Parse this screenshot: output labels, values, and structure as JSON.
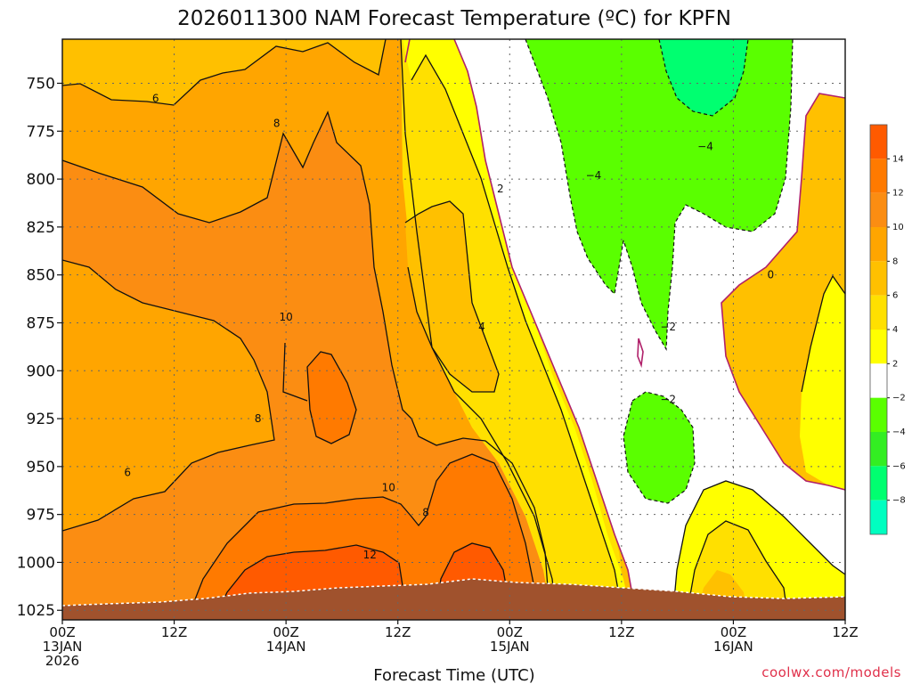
{
  "chart_data": {
    "type": "heatmap",
    "title": "2026011300 NAM Forecast Temperature (ºC) for KPFN",
    "xlabel": "Forecast Time (UTC)",
    "ylabel": "",
    "credit": "coolwx.com/models",
    "x_ticks": [
      {
        "hour": 0,
        "line1": "00Z",
        "line2": "13JAN",
        "line3": "2026"
      },
      {
        "hour": 12,
        "line1": "12Z",
        "line2": "",
        "line3": ""
      },
      {
        "hour": 24,
        "line1": "00Z",
        "line2": "14JAN",
        "line3": ""
      },
      {
        "hour": 36,
        "line1": "12Z",
        "line2": "",
        "line3": ""
      },
      {
        "hour": 48,
        "line1": "00Z",
        "line2": "15JAN",
        "line3": ""
      },
      {
        "hour": 60,
        "line1": "12Z",
        "line2": "",
        "line3": ""
      },
      {
        "hour": 72,
        "line1": "00Z",
        "line2": "16JAN",
        "line3": ""
      },
      {
        "hour": 84,
        "line1": "12Z",
        "line2": "",
        "line3": ""
      }
    ],
    "xlim": [
      0,
      84
    ],
    "y_ticks": [
      750,
      775,
      800,
      825,
      850,
      875,
      900,
      925,
      950,
      975,
      1000,
      1025
    ],
    "ylim_hpa": [
      727,
      1030
    ],
    "y_inverted": true,
    "grid": "on",
    "colorbar": {
      "levels": [
        {
          "label": "14",
          "color": "#ff5a00"
        },
        {
          "label": "12",
          "color": "#ff7a00"
        },
        {
          "label": "10",
          "color": "#fb8d12"
        },
        {
          "label": "8",
          "color": "#ffa500"
        },
        {
          "label": "6",
          "color": "#ffc000"
        },
        {
          "label": "4",
          "color": "#ffe000"
        },
        {
          "label": "2",
          "color": "#ffff00"
        },
        {
          "label": "−2",
          "color": "#ffffff"
        },
        {
          "label": "−4",
          "color": "#5aff00"
        },
        {
          "label": "−6",
          "color": "#33ee22"
        },
        {
          "label": "−8",
          "color": "#00ff70"
        },
        {
          "label": "",
          "color": "#00ffc0"
        }
      ]
    },
    "fill_colors": {
      "t0_2": "#ffff00",
      "t2_4": "#ffe000",
      "t4_6": "#ffc000",
      "t6_8": "#ffa500",
      "t8_10": "#fb8d12",
      "t10_12": "#ff7a00",
      "t12_14": "#ff5a00",
      "neg2_0": "#ffffff",
      "neg4_neg2": "#5aff00",
      "neg6_neg4": "#00ff70",
      "terrain": "#a0522d"
    },
    "contour_labels": [
      {
        "text": "6",
        "hour": 10,
        "hpa": 758
      },
      {
        "text": "8",
        "hour": 23,
        "hpa": 771
      },
      {
        "text": "10",
        "hour": 24,
        "hpa": 872
      },
      {
        "text": "8",
        "hour": 21,
        "hpa": 925
      },
      {
        "text": "6",
        "hour": 7,
        "hpa": 953
      },
      {
        "text": "10",
        "hour": 35,
        "hpa": 961
      },
      {
        "text": "8",
        "hour": 39,
        "hpa": 974
      },
      {
        "text": "12",
        "hour": 33,
        "hpa": 996
      },
      {
        "text": "2",
        "hour": 47,
        "hpa": 805
      },
      {
        "text": "4",
        "hour": 45,
        "hpa": 877
      },
      {
        "text": "−4",
        "hour": 57,
        "hpa": 798
      },
      {
        "text": "−4",
        "hour": 69,
        "hpa": 783
      },
      {
        "text": "0",
        "hour": 76,
        "hpa": 850
      },
      {
        "text": "−2",
        "hour": 65,
        "hpa": 877
      },
      {
        "text": "−2",
        "hour": 65,
        "hpa": 915
      }
    ]
  }
}
